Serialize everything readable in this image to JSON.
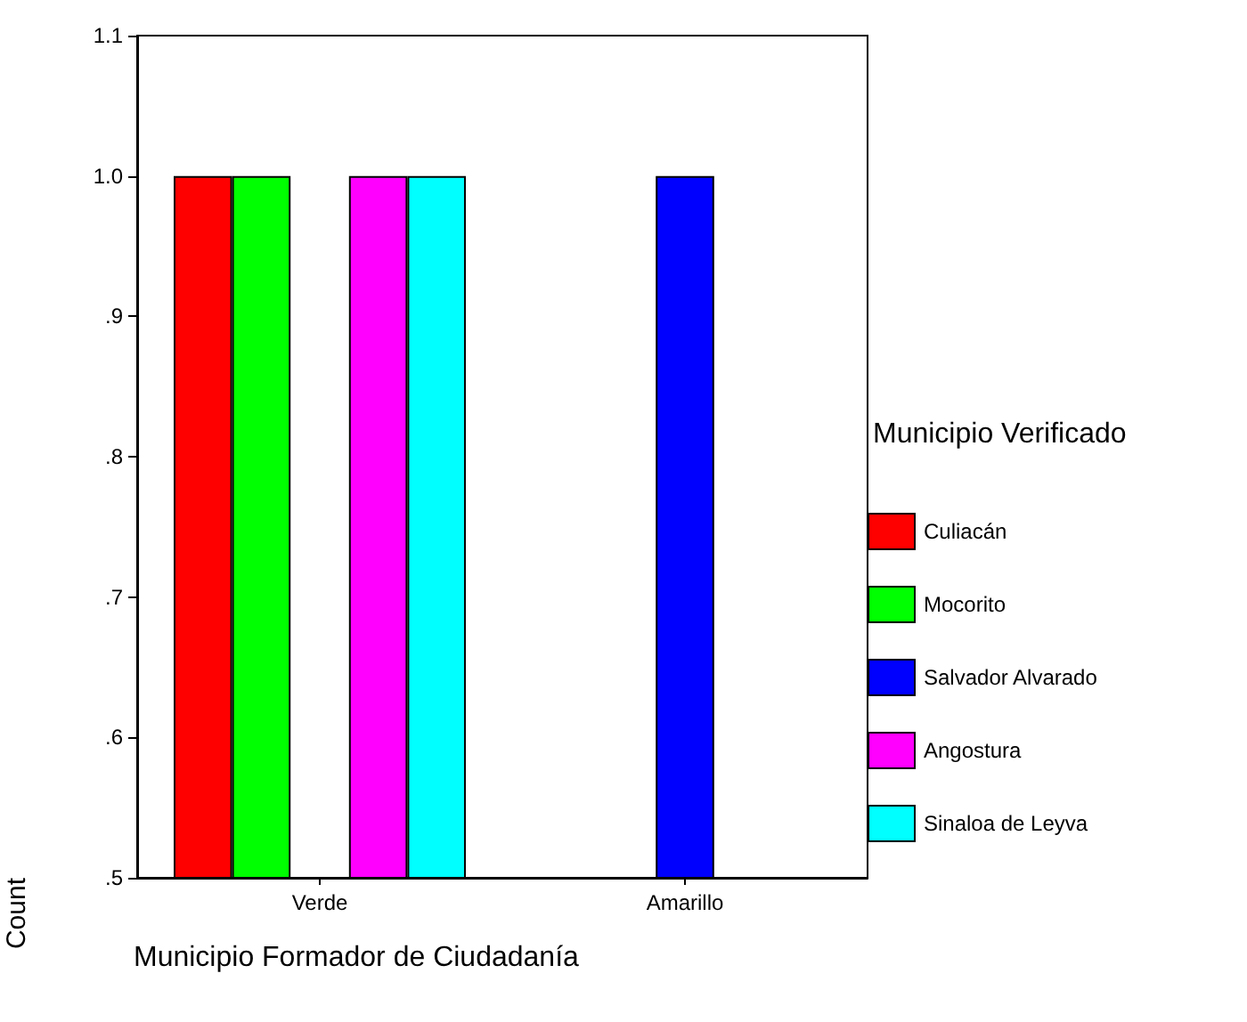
{
  "chart_data": {
    "type": "bar",
    "xlabel": "Municipio Formador de Ciudadanía",
    "ylabel": "Count",
    "legend_title": "Municipio Verificado",
    "categories": [
      "Verde",
      "Amarillo"
    ],
    "series": [
      {
        "name": "Culiacán",
        "color": "#ff0000",
        "values": [
          1.0,
          null
        ]
      },
      {
        "name": "Mocorito",
        "color": "#00ff00",
        "values": [
          1.0,
          null
        ]
      },
      {
        "name": "Salvador Alvarado",
        "color": "#0000ff",
        "values": [
          null,
          1.0
        ]
      },
      {
        "name": "Angostura",
        "color": "#ff00ff",
        "values": [
          1.0,
          null
        ]
      },
      {
        "name": "Sinaloa de Leyva",
        "color": "#00ffff",
        "values": [
          1.0,
          null
        ]
      }
    ],
    "ylim": [
      0.5,
      1.1
    ],
    "yticks": [
      {
        "value": 0.5,
        "label": ".5"
      },
      {
        "value": 0.6,
        "label": ".6"
      },
      {
        "value": 0.7,
        "label": ".7"
      },
      {
        "value": 0.8,
        "label": ".8"
      },
      {
        "value": 0.9,
        "label": ".9"
      },
      {
        "value": 1.0,
        "label": "1.0"
      },
      1.1
    ],
    "grid": false,
    "legend": "right"
  }
}
